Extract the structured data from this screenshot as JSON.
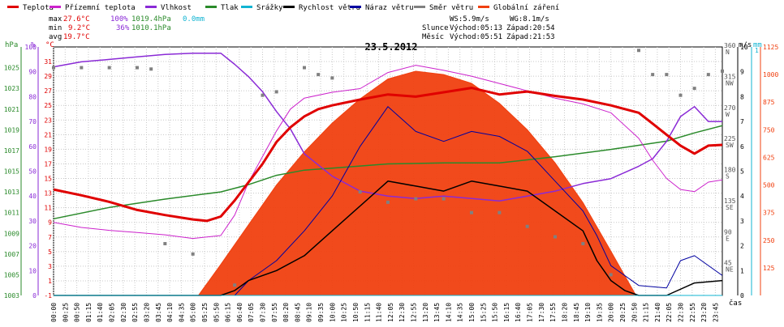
{
  "legend": [
    {
      "label": "Teplota",
      "color": "#e00000"
    },
    {
      "label": "Přízemní teplota",
      "color": "#cc22cc"
    },
    {
      "label": "Vlhkost",
      "color": "#8a2ad6"
    },
    {
      "label": "Tlak",
      "color": "#2a8a2a"
    },
    {
      "label": "Srážky",
      "color": "#12b4d2"
    },
    {
      "label": "Rychlost větru",
      "color": "#000000"
    },
    {
      "label": "Náraz větru",
      "color": "#0000a0"
    },
    {
      "label": "Směr větru",
      "color": "#808080"
    },
    {
      "label": "Globální záření",
      "color": "#f04010"
    }
  ],
  "stats": {
    "max_label": "max",
    "max_temp": "27.6°C",
    "max_hum": "100%",
    "max_press": "1019.4hPa",
    "max_rain": "0.0mm",
    "min_label": "min",
    "min_temp": "9.2°C",
    "min_hum": "36%",
    "min_press": "1010.1hPa",
    "avg_label": "avg",
    "avg_temp": "19.7°C"
  },
  "astro": {
    "ws": "WS:5.9m/s",
    "wg": "WG:8.1m/s",
    "sun_label": "Slunce",
    "sun_rise": "Východ:05:13",
    "sun_set": "Západ:20:54",
    "moon_label": "Měsíc",
    "moon_rise": "Východ:05:51",
    "moon_set": "Západ:21:53"
  },
  "chart_data": {
    "type": "line",
    "title": "23.5.2012",
    "xlabel": "čas",
    "axis_units": {
      "pressure": "hPa",
      "humidity": "%",
      "temperature": "°C",
      "wind_dir": "°",
      "wind_speed": "m/s",
      "rain": "mm",
      "radiation": "W/m²"
    },
    "pressure_ticks": [
      "1025",
      "1023",
      "1021",
      "1019",
      "1017",
      "1015",
      "1013",
      "1011",
      "1009",
      "1007",
      "1005",
      "1003"
    ],
    "humidity_ticks": [
      "100",
      "90",
      "80",
      "70",
      "60",
      "50",
      "40",
      "30",
      "20",
      "10",
      "0"
    ],
    "temperature_ticks": [
      "31",
      "29",
      "27",
      "25",
      "23",
      "21",
      "19",
      "17",
      "15",
      "13",
      "11",
      "9",
      "7",
      "5",
      "3",
      "1",
      "-1"
    ],
    "direction_ticks": [
      "360 N",
      "315 NW",
      "270 W",
      "225 SW",
      "180 S",
      "135 SE",
      "90 E",
      "45 NE"
    ],
    "wind_ticks": [
      "10",
      "9",
      "8",
      "7",
      "6",
      "5",
      "4",
      "3",
      "2",
      "1",
      "0"
    ],
    "rain_ticks": [
      "1"
    ],
    "radiation_ticks": [
      "1125",
      "1000",
      "875",
      "750",
      "625",
      "500",
      "375",
      "250",
      "125"
    ],
    "time_ticks": [
      "00:00",
      "00:25",
      "00:50",
      "01:15",
      "01:40",
      "02:05",
      "02:30",
      "02:55",
      "03:20",
      "03:45",
      "04:10",
      "04:35",
      "05:00",
      "05:25",
      "05:50",
      "06:15",
      "06:40",
      "07:05",
      "07:30",
      "07:55",
      "08:20",
      "08:45",
      "09:10",
      "09:35",
      "10:00",
      "10:25",
      "10:50",
      "11:15",
      "11:40",
      "12:05",
      "12:30",
      "12:55",
      "13:20",
      "13:45",
      "14:10",
      "14:35",
      "15:00",
      "15:25",
      "15:50",
      "16:15",
      "16:40",
      "17:05",
      "17:30",
      "17:55",
      "18:20",
      "18:45",
      "19:10",
      "19:35",
      "20:00",
      "20:25",
      "20:50",
      "21:15",
      "21:40",
      "22:05",
      "22:30",
      "22:55",
      "23:20",
      "23:45"
    ],
    "series": [
      {
        "name": "Teplota",
        "color": "#e00000",
        "hours": [
          0,
          1,
          2,
          3,
          4,
          5,
          5.5,
          6,
          6.5,
          7,
          7.5,
          8,
          8.5,
          9,
          9.5,
          10,
          11,
          12,
          13,
          14,
          15,
          16,
          17,
          18,
          19,
          20,
          21,
          21.5,
          22,
          22.5,
          23,
          23.5,
          24
        ],
        "values": [
          13.5,
          12.7,
          11.8,
          10.7,
          10.0,
          9.4,
          9.2,
          9.8,
          12.0,
          14.5,
          17.0,
          20.0,
          22.0,
          23.5,
          24.5,
          25.0,
          25.8,
          26.5,
          26.2,
          26.8,
          27.4,
          26.5,
          26.9,
          26.3,
          25.8,
          25.0,
          24.0,
          22.5,
          21.0,
          19.5,
          18.4,
          19.5,
          19.6
        ]
      },
      {
        "name": "Přízemní teplota",
        "color": "#cc22cc",
        "hours": [
          0,
          1,
          2,
          3,
          4,
          5,
          6,
          6.5,
          7,
          7.5,
          8,
          8.5,
          9,
          10,
          11,
          12,
          13,
          14,
          15,
          16,
          17,
          18,
          19,
          20,
          21,
          21.5,
          22,
          22.5,
          23,
          23.5,
          24
        ],
        "values": [
          9.0,
          8.3,
          7.9,
          7.6,
          7.3,
          6.8,
          7.2,
          10.0,
          14.5,
          18.0,
          21.5,
          24.5,
          26.0,
          26.8,
          27.3,
          29.5,
          30.5,
          29.8,
          29.0,
          28.0,
          27.0,
          26.0,
          25.2,
          24.0,
          20.5,
          17.5,
          15.0,
          13.5,
          13.2,
          14.5,
          14.8
        ]
      },
      {
        "name": "Vlhkost",
        "color": "#8a2ad6",
        "hours": [
          0,
          1,
          2,
          3,
          4,
          5,
          6,
          6.5,
          7,
          7.5,
          8,
          8.5,
          9,
          10,
          11,
          12,
          13,
          14,
          15,
          16,
          17,
          18,
          19,
          20,
          21,
          21.5,
          22,
          22.5,
          23,
          23.5,
          24
        ],
        "values": [
          92,
          94,
          95,
          96,
          97,
          97.5,
          97.5,
          93,
          88,
          82,
          74,
          67,
          57,
          48,
          42,
          40,
          39,
          40,
          39,
          38,
          40,
          42,
          45,
          47,
          52,
          55,
          62,
          72,
          76,
          70,
          70
        ]
      },
      {
        "name": "Tlak",
        "color": "#2a8a2a",
        "hours": [
          0,
          2,
          4,
          6,
          7,
          8,
          9,
          10,
          12,
          14,
          16,
          18,
          20,
          21,
          22,
          23,
          24
        ],
        "values": [
          1010.4,
          1011.5,
          1012.3,
          1013.0,
          1013.7,
          1014.6,
          1015.1,
          1015.3,
          1015.7,
          1015.8,
          1015.8,
          1016.4,
          1017.1,
          1017.5,
          1017.9,
          1018.7,
          1019.4
        ]
      },
      {
        "name": "Globální záření",
        "color": "#f04010",
        "hours": [
          5.2,
          6,
          7,
          8,
          9,
          10,
          11,
          12,
          13,
          14,
          15,
          16,
          17,
          18,
          19,
          20,
          20.9
        ],
        "values": [
          0,
          140,
          320,
          500,
          650,
          780,
          890,
          980,
          1015,
          1000,
          960,
          870,
          750,
          600,
          420,
          200,
          0
        ]
      },
      {
        "name": "Rychlost větru",
        "color": "#000000",
        "hours": [
          0,
          6,
          6.5,
          7,
          8,
          9,
          10,
          11,
          12,
          13,
          14,
          15,
          16,
          17,
          18,
          19,
          19.5,
          20,
          20.5,
          21,
          22,
          23,
          24
        ],
        "values": [
          0,
          0,
          0.2,
          0.6,
          1.0,
          1.6,
          2.6,
          3.6,
          4.6,
          4.4,
          4.2,
          4.6,
          4.4,
          4.2,
          3.4,
          2.6,
          1.4,
          0.6,
          0.2,
          0,
          0,
          0.5,
          0.6
        ]
      },
      {
        "name": "Náraz větru",
        "color": "#0000a0",
        "hours": [
          0,
          6.5,
          7,
          8,
          9,
          10,
          11,
          12,
          13,
          14,
          15,
          16,
          17,
          18,
          19,
          19.5,
          20,
          21,
          22,
          22.5,
          23,
          24
        ],
        "values": [
          0,
          0,
          0.6,
          1.4,
          2.6,
          4.0,
          6.0,
          7.6,
          6.6,
          6.2,
          6.6,
          6.4,
          5.8,
          4.6,
          3.4,
          2.4,
          1.2,
          0.4,
          0.3,
          1.4,
          1.6,
          0.8
        ]
      },
      {
        "name": "Směr větru",
        "color": "#808080",
        "hours": [
          0,
          1,
          2,
          3,
          3.5,
          4,
          5,
          6.5,
          7.5,
          8,
          9,
          9.5,
          10,
          11,
          12,
          13,
          14,
          15,
          16,
          17,
          18,
          19,
          20,
          21,
          21.5,
          22,
          22.5,
          23,
          23.5,
          24
        ],
        "values": [
          330,
          330,
          330,
          330,
          328,
          75,
          60,
          15,
          290,
          295,
          330,
          320,
          315,
          150,
          135,
          140,
          140,
          120,
          120,
          100,
          85,
          75,
          30,
          355,
          320,
          320,
          290,
          300,
          320,
          325
        ]
      },
      {
        "name": "Srážky",
        "color": "#12b4d2",
        "hours": [
          0,
          24
        ],
        "values": [
          0,
          0
        ]
      }
    ],
    "scales": {
      "pressure": [
        1003,
        1027
      ],
      "humidity": [
        0,
        100
      ],
      "temperature": [
        -1,
        33
      ],
      "wind_dir": [
        0,
        360
      ],
      "wind_speed": [
        0,
        10
      ],
      "radiation": [
        0,
        1125
      ]
    },
    "grid": true
  }
}
